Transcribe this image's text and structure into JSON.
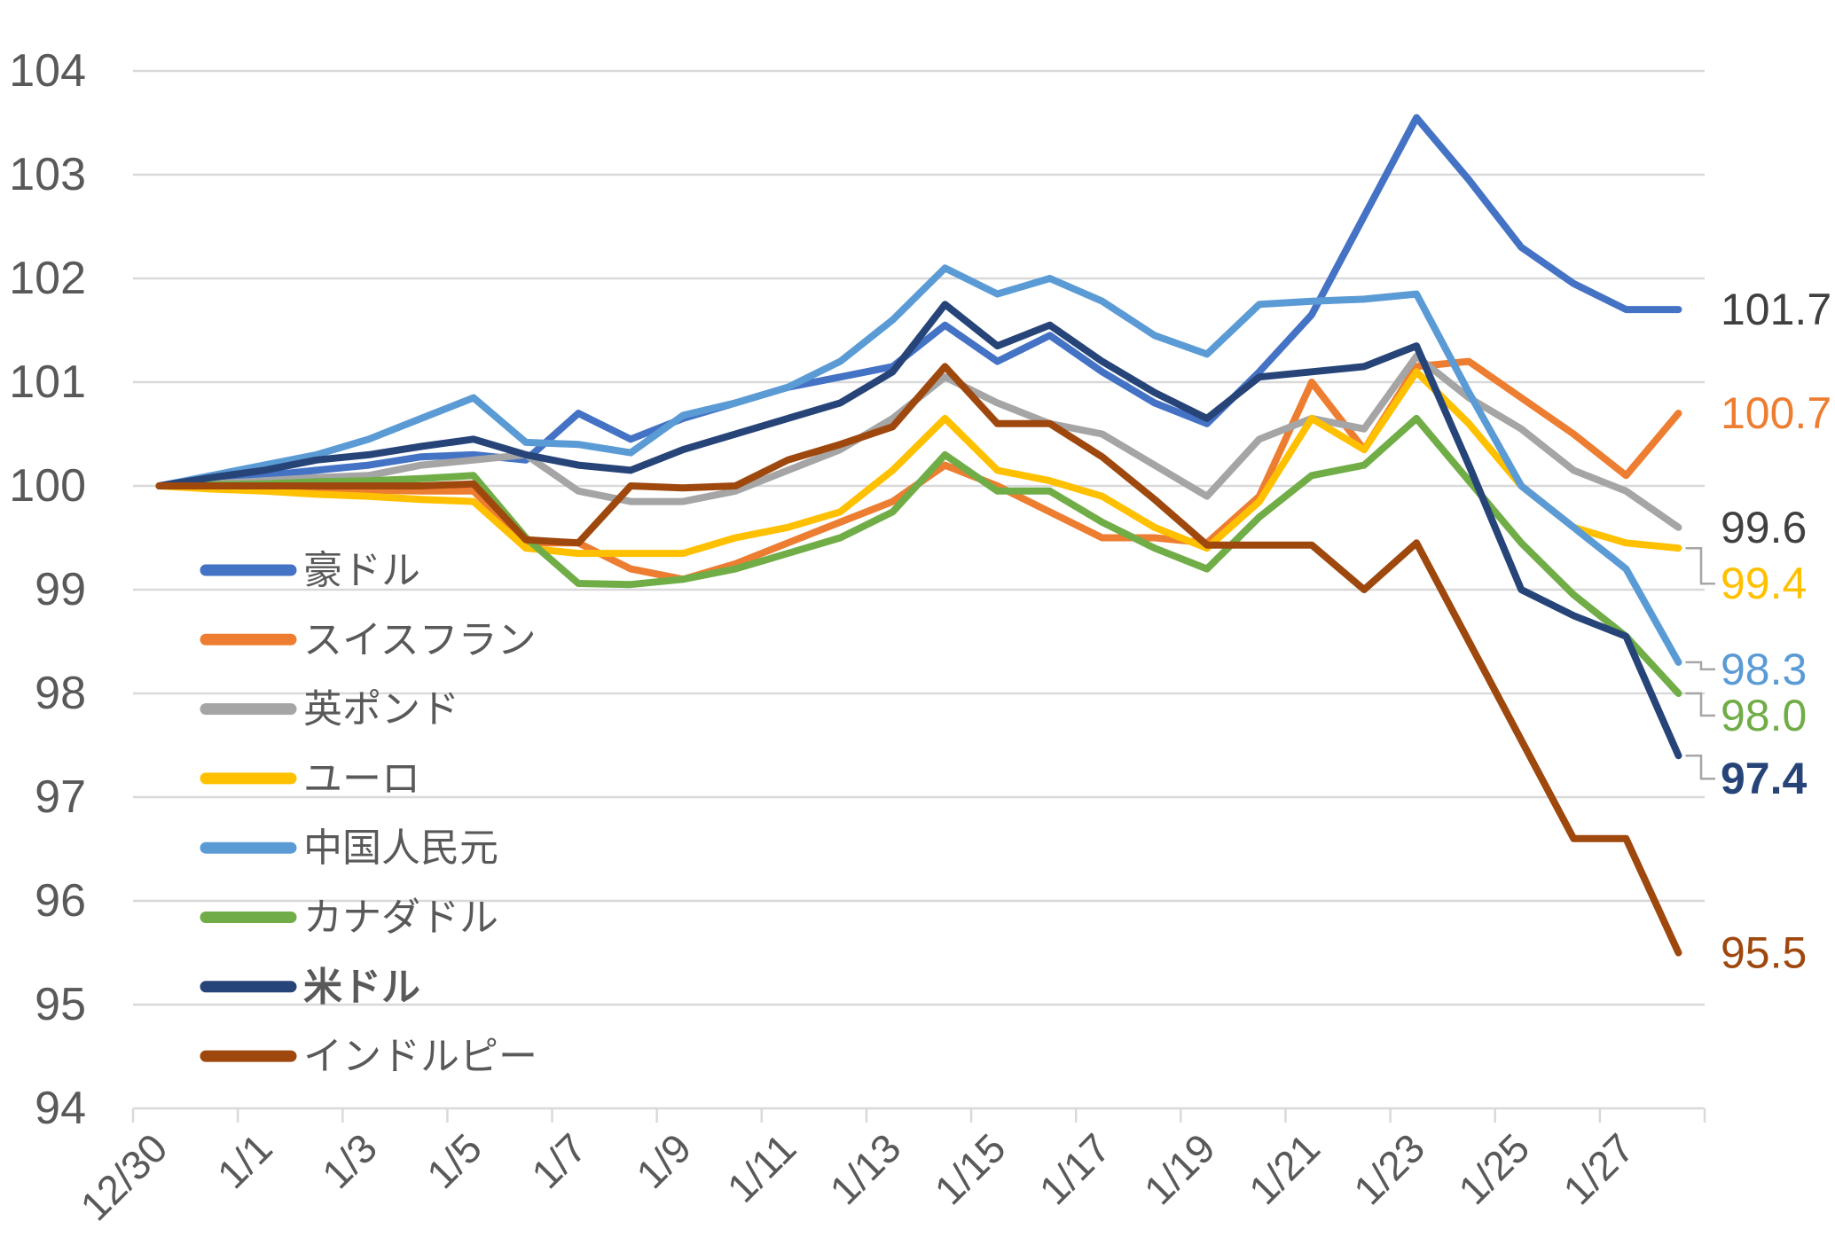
{
  "chart_data": {
    "type": "line",
    "title": "",
    "x": [
      "12/30",
      "12/31",
      "1/1",
      "1/2",
      "1/3",
      "1/4",
      "1/5",
      "1/6",
      "1/7",
      "1/8",
      "1/9",
      "1/10",
      "1/11",
      "1/12",
      "1/13",
      "1/14",
      "1/15",
      "1/16",
      "1/17",
      "1/18",
      "1/19",
      "1/20",
      "1/21",
      "1/22",
      "1/23",
      "1/24",
      "1/25",
      "1/26",
      "1/27",
      "1/28"
    ],
    "x_tick_label_every": 2,
    "ylim": [
      94,
      104
    ],
    "y_ticks": [
      94,
      95,
      96,
      97,
      98,
      99,
      100,
      101,
      102,
      103,
      104
    ],
    "grid": true,
    "gridline_color": "#D9D9D9",
    "axis_label_color": "#595959",
    "leader_line_color": "#A6A6A6",
    "legend_position": "inside-left",
    "series": [
      {
        "id": "aud",
        "name": "豪ドル",
        "color": "#4472C4",
        "emphasis": false,
        "values": [
          100,
          100.05,
          100.1,
          100.15,
          100.2,
          100.28,
          100.3,
          100.25,
          100.7,
          100.45,
          100.65,
          100.8,
          100.95,
          101.05,
          101.15,
          101.55,
          101.2,
          101.45,
          101.1,
          100.8,
          100.6,
          101.1,
          101.65,
          102.6,
          103.55,
          102.95,
          102.3,
          101.95,
          101.7,
          101.7
        ],
        "end_label": {
          "text": "101.7",
          "color": "#404040",
          "bold": false,
          "leader": false,
          "offset": 0
        }
      },
      {
        "id": "chf",
        "name": "スイスフラン",
        "color": "#ED7D31",
        "emphasis": false,
        "values": [
          100,
          100,
          99.98,
          99.97,
          99.96,
          99.95,
          99.95,
          99.45,
          99.45,
          99.2,
          99.1,
          99.25,
          99.45,
          99.65,
          99.85,
          100.2,
          100.0,
          99.75,
          99.5,
          99.5,
          99.45,
          99.9,
          101.0,
          100.35,
          101.15,
          101.2,
          100.85,
          100.5,
          100.1,
          100.7
        ],
        "end_label": {
          "text": "100.7",
          "color": "#ED7D31",
          "bold": false,
          "leader": false,
          "offset": 0
        }
      },
      {
        "id": "gbp",
        "name": "英ポンド",
        "color": "#A5A5A5",
        "emphasis": false,
        "values": [
          100,
          100.02,
          100.05,
          100.08,
          100.1,
          100.2,
          100.25,
          100.3,
          99.95,
          99.85,
          99.85,
          99.95,
          100.15,
          100.35,
          100.65,
          101.05,
          100.8,
          100.6,
          100.5,
          100.2,
          99.9,
          100.45,
          100.65,
          100.55,
          101.25,
          100.85,
          100.55,
          100.15,
          99.95,
          99.6
        ],
        "end_label": {
          "text": "99.6",
          "color": "#404040",
          "bold": false,
          "leader": false,
          "offset": 0
        }
      },
      {
        "id": "eur",
        "name": "ユーロ",
        "color": "#FFC000",
        "emphasis": false,
        "values": [
          100,
          99.97,
          99.95,
          99.92,
          99.9,
          99.87,
          99.85,
          99.4,
          99.35,
          99.35,
          99.35,
          99.5,
          99.6,
          99.75,
          100.15,
          100.65,
          100.15,
          100.05,
          99.9,
          99.6,
          99.4,
          99.85,
          100.65,
          100.35,
          101.1,
          100.6,
          100.0,
          99.6,
          99.45,
          99.4
        ],
        "end_label": {
          "text": "99.4",
          "color": "#FFC000",
          "bold": false,
          "leader": true,
          "offset": 40
        }
      },
      {
        "id": "cny",
        "name": "中国人民元",
        "color": "#5B9BD5",
        "emphasis": false,
        "values": [
          100,
          100.1,
          100.2,
          100.3,
          100.45,
          100.65,
          100.85,
          100.42,
          100.4,
          100.32,
          100.68,
          100.8,
          100.95,
          101.2,
          101.6,
          102.1,
          101.85,
          102.0,
          101.78,
          101.45,
          101.27,
          101.75,
          101.78,
          101.8,
          101.85,
          100.9,
          100.0,
          99.6,
          99.2,
          98.3
        ],
        "end_label": {
          "text": "98.3",
          "color": "#5B9BD5",
          "bold": false,
          "leader": true,
          "offset": 8
        }
      },
      {
        "id": "cad",
        "name": "カナダドル",
        "color": "#70AD47",
        "emphasis": false,
        "values": [
          100,
          100.01,
          100.02,
          100.04,
          100.05,
          100.07,
          100.1,
          99.5,
          99.06,
          99.05,
          99.1,
          99.2,
          99.35,
          99.5,
          99.75,
          100.3,
          99.95,
          99.95,
          99.65,
          99.4,
          99.2,
          99.7,
          100.1,
          100.2,
          100.65,
          100.05,
          99.45,
          98.95,
          98.55,
          98.0
        ],
        "end_label": {
          "text": "98.0",
          "color": "#70AD47",
          "bold": false,
          "leader": true,
          "offset": 25
        }
      },
      {
        "id": "usd",
        "name": "米ドル",
        "color": "#264478",
        "emphasis": true,
        "values": [
          100,
          100.08,
          100.15,
          100.25,
          100.3,
          100.38,
          100.45,
          100.3,
          100.2,
          100.15,
          100.35,
          100.5,
          100.65,
          100.8,
          101.1,
          101.75,
          101.35,
          101.55,
          101.2,
          100.9,
          100.65,
          101.05,
          101.1,
          101.15,
          101.35,
          100.2,
          99.0,
          98.75,
          98.55,
          97.4
        ],
        "end_label": {
          "text": "97.4",
          "color": "#264478",
          "bold": true,
          "leader": true,
          "offset": 26
        }
      },
      {
        "id": "inr",
        "name": "インドルピー",
        "color": "#9E480E",
        "emphasis": false,
        "values": [
          100,
          100,
          100,
          100,
          100,
          100,
          100.02,
          99.48,
          99.45,
          100.0,
          99.98,
          100.0,
          100.25,
          100.4,
          100.57,
          101.15,
          100.6,
          100.6,
          100.28,
          99.87,
          99.43,
          99.43,
          99.43,
          99.0,
          99.45,
          98.5,
          97.55,
          96.6,
          96.6,
          95.5
        ],
        "end_label": {
          "text": "95.5",
          "color": "#9E480E",
          "bold": false,
          "leader": false,
          "offset": 0
        }
      }
    ],
    "legend_entries": [
      "豪ドル",
      "スイスフラン",
      "英ポンド",
      "ユーロ",
      "中国人民元",
      "カナダドル",
      "米ドル",
      "インドルピー"
    ]
  }
}
